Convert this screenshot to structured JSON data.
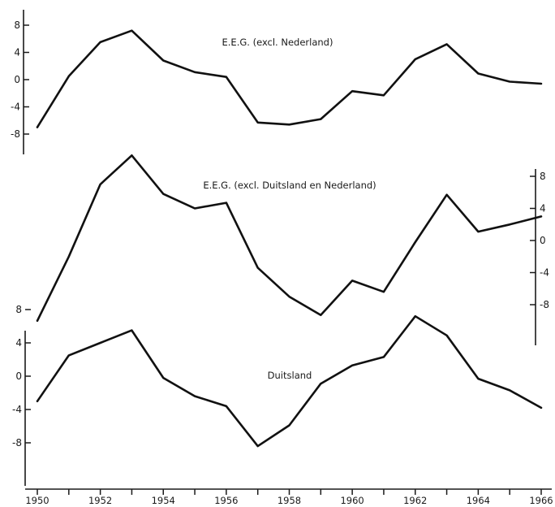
{
  "chart_data": {
    "type": "line",
    "x_ticks": [
      "1950",
      "1952",
      "1954",
      "1956",
      "1958",
      "1960",
      "1962",
      "1964",
      "1966"
    ],
    "x_range": [
      1950,
      1966
    ],
    "panels": [
      {
        "title": "E.E.G. (excl. Nederland)",
        "y_axis_side": "left",
        "y_ticks": [
          "8",
          "4",
          "0",
          "-4",
          "-8"
        ],
        "ylim": [
          -8,
          8
        ],
        "series": [
          {
            "x": [
              1950,
              1951,
              1952,
              1953,
              1954,
              1955,
              1956,
              1957,
              1958,
              1959,
              1960,
              1961,
              1962,
              1963,
              1964,
              1965,
              1966
            ],
            "values": [
              -7.0,
              0.5,
              5.5,
              7.2,
              2.8,
              1.1,
              0.4,
              -6.3,
              -6.6,
              -5.8,
              -1.7,
              -2.3,
              3.0,
              5.2,
              0.9,
              -0.3,
              -0.6
            ]
          }
        ]
      },
      {
        "title": "E.E.G. (excl. Duitsland en Nederland)",
        "y_axis_side": "right",
        "y_ticks": [
          "8",
          "4",
          "0",
          "-4",
          "-8"
        ],
        "ylim": [
          -8,
          8
        ],
        "series": [
          {
            "x": [
              1950,
              1951,
              1952,
              1953,
              1954,
              1955,
              1956,
              1957,
              1958,
              1959,
              1960,
              1961,
              1962,
              1963,
              1964,
              1965,
              1966
            ],
            "values": [
              -10.0,
              -2.0,
              7.0,
              10.6,
              5.8,
              4.0,
              4.7,
              -3.4,
              -7.0,
              -9.3,
              -5.0,
              -6.4,
              -0.2,
              5.7,
              1.1,
              2.0,
              3.0
            ]
          }
        ]
      },
      {
        "title": "Duitsland",
        "y_axis_side": "left",
        "y_ticks": [
          "8",
          "4",
          "0",
          "-4",
          "-8"
        ],
        "ylim": [
          -8,
          8
        ],
        "series": [
          {
            "x": [
              1950,
              1951,
              1952,
              1953,
              1954,
              1955,
              1956,
              1957,
              1958,
              1959,
              1960,
              1961,
              1962,
              1963,
              1964,
              1965,
              1966
            ],
            "values": [
              -3.0,
              2.5,
              4.0,
              5.5,
              -0.2,
              -2.4,
              -3.6,
              -8.4,
              -5.9,
              -0.9,
              1.3,
              2.3,
              7.2,
              4.9,
              -0.3,
              -1.7,
              -3.8
            ]
          }
        ]
      }
    ]
  }
}
